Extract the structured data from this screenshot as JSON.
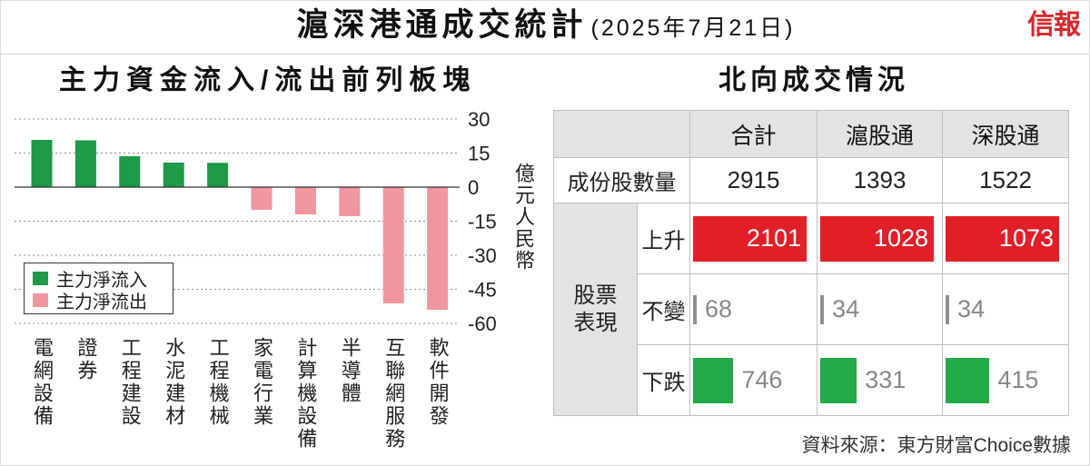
{
  "header": {
    "title": "滬深港通成交統計",
    "date": "(2025年7月21日)",
    "logo": "信報"
  },
  "chart_data": [
    {
      "type": "bar",
      "title": "主力資金流入/流出前列板塊",
      "categories": [
        "電網設備",
        "證券",
        "工程建設",
        "水泥建材",
        "工程機械",
        "家電行業",
        "計算機設備",
        "半導體",
        "互聯網服務",
        "軟件開發"
      ],
      "values": [
        20.8,
        20.6,
        13.6,
        10.8,
        10.7,
        -10.0,
        -12.0,
        -12.8,
        -51.2,
        -54.0
      ],
      "ylabel": "億元人民幣",
      "yticks": [
        30,
        15,
        0,
        -15,
        -30,
        -45,
        -60
      ],
      "ylim": [
        -60,
        30
      ],
      "grid": true,
      "legend": [
        "主力淨流入",
        "主力淨流出"
      ],
      "legend_position": "bottom-left",
      "colors": {
        "inflow": "#1e9a48",
        "outflow": "#f0969e"
      }
    },
    {
      "type": "table",
      "title": "北向成交情況",
      "columns": [
        "合計",
        "滬股通",
        "深股通"
      ],
      "constituents": {
        "label": "成份股數量",
        "values": [
          2915,
          1393,
          1522
        ]
      },
      "performance": {
        "label": "股票表現",
        "rows": [
          {
            "label": "上升",
            "values": [
              2101,
              1028,
              1073
            ],
            "color": "#e21f28"
          },
          {
            "label": "不變",
            "values": [
              68,
              34,
              34
            ],
            "color": "#8f8f8f"
          },
          {
            "label": "下跌",
            "values": [
              746,
              331,
              415
            ],
            "color": "#22ab47"
          }
        ]
      }
    }
  ],
  "source": "資料來源：東方財富Choice數據"
}
